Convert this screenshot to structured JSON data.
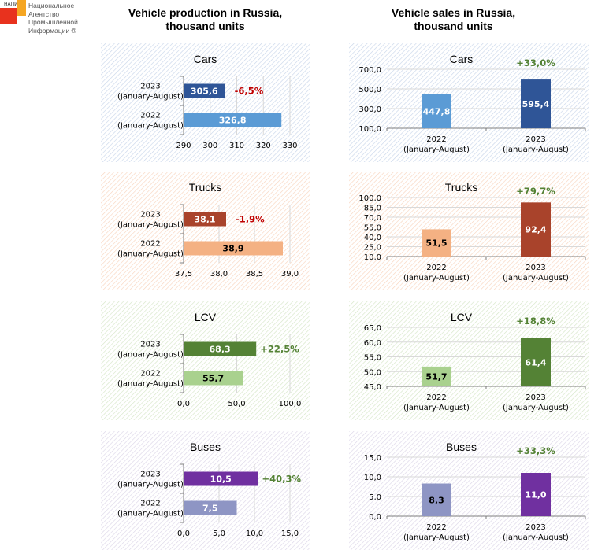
{
  "logo": {
    "abbr": "НАПИ",
    "lines": [
      "Национальное",
      "Агентство",
      "Промышленной",
      "Информации ®"
    ]
  },
  "headers": {
    "production": "Vehicle production in Russia, thousand units",
    "production_line1": "Vehicle production in Russia,",
    "production_line2": "thousand units",
    "sales": "Vehicle sales in Russia, thousand units",
    "sales_line1": "Vehicle sales in Russia,",
    "sales_line2": "thousand units"
  },
  "chart_data": [
    {
      "id": "prod-cars",
      "group": "production",
      "type": "bar",
      "orientation": "horizontal",
      "title": "Cars",
      "categories": [
        [
          "2023",
          "(January-August)"
        ],
        [
          "2022",
          "(January-August)"
        ]
      ],
      "values": [
        305.6,
        326.8
      ],
      "value_labels": [
        "305,6",
        "326,8"
      ],
      "colors": [
        "#2f5597",
        "#5b9bd5"
      ],
      "label_colors": [
        "#ffffff",
        "#ffffff"
      ],
      "change": "-6,5%",
      "change_color": "#c00000",
      "xlim": [
        290,
        330
      ],
      "ticks": [
        290,
        300,
        310,
        320,
        330
      ],
      "tick_labels": [
        "290",
        "300",
        "310",
        "320",
        "330"
      ],
      "grid": true,
      "hatch_color": "#c9d6ea"
    },
    {
      "id": "sales-cars",
      "group": "sales",
      "type": "bar",
      "orientation": "vertical",
      "title": "Cars",
      "categories": [
        [
          "2022",
          "(January-August)"
        ],
        [
          "2023",
          "(January-August)"
        ]
      ],
      "values": [
        447.8,
        595.4
      ],
      "value_labels": [
        "447,8",
        "595,4"
      ],
      "colors": [
        "#5b9bd5",
        "#2f5597"
      ],
      "label_colors": [
        "#ffffff",
        "#ffffff"
      ],
      "change": "+33,0%",
      "change_color": "#548235",
      "ylim": [
        100,
        700
      ],
      "ticks": [
        100,
        300,
        500,
        700
      ],
      "tick_labels": [
        "100,0",
        "300,0",
        "500,0",
        "700,0"
      ],
      "grid": true,
      "hatch_color": "#c9d6ea"
    },
    {
      "id": "prod-trucks",
      "group": "production",
      "type": "bar",
      "orientation": "horizontal",
      "title": "Trucks",
      "categories": [
        [
          "2023",
          "(January-August)"
        ],
        [
          "2022",
          "(January-August)"
        ]
      ],
      "values": [
        38.1,
        38.9
      ],
      "value_labels": [
        "38,1",
        "38,9"
      ],
      "colors": [
        "#a9432b",
        "#f4b183"
      ],
      "label_colors": [
        "#ffffff",
        "#000000"
      ],
      "change": "-1,9%",
      "change_color": "#c00000",
      "xlim": [
        37.5,
        39.0
      ],
      "ticks": [
        37.5,
        38.0,
        38.5,
        39.0
      ],
      "tick_labels": [
        "37,5",
        "38,0",
        "38,5",
        "39,0"
      ],
      "grid": true,
      "hatch_color": "#f8d5bf"
    },
    {
      "id": "sales-trucks",
      "group": "sales",
      "type": "bar",
      "orientation": "vertical",
      "title": "Trucks",
      "categories": [
        [
          "2022",
          "(January-August)"
        ],
        [
          "2023",
          "(January-August)"
        ]
      ],
      "values": [
        51.5,
        92.4
      ],
      "value_labels": [
        "51,5",
        "92,4"
      ],
      "colors": [
        "#f4b183",
        "#a9432b"
      ],
      "label_colors": [
        "#000000",
        "#ffffff"
      ],
      "change": "+79,7%",
      "change_color": "#548235",
      "ylim": [
        10,
        100
      ],
      "ticks": [
        10,
        25,
        40,
        55,
        70,
        85,
        100
      ],
      "tick_labels": [
        "10,0",
        "25,0",
        "40,0",
        "55,0",
        "70,0",
        "85,0",
        "100,0"
      ],
      "grid": true,
      "hatch_color": "#f8d5bf"
    },
    {
      "id": "prod-lcv",
      "group": "production",
      "type": "bar",
      "orientation": "horizontal",
      "title": "LCV",
      "categories": [
        [
          "2023",
          "(January-August)"
        ],
        [
          "2022",
          "(January-August)"
        ]
      ],
      "values": [
        68.3,
        55.7
      ],
      "value_labels": [
        "68,3",
        "55,7"
      ],
      "colors": [
        "#548235",
        "#a9d18e"
      ],
      "label_colors": [
        "#ffffff",
        "#000000"
      ],
      "change": "+22,5%",
      "change_color": "#548235",
      "xlim": [
        0,
        100
      ],
      "ticks": [
        0,
        50,
        100
      ],
      "tick_labels": [
        "0,0",
        "50,0",
        "100,0"
      ],
      "grid": true,
      "hatch_color": "#d6e6c8"
    },
    {
      "id": "sales-lcv",
      "group": "sales",
      "type": "bar",
      "orientation": "vertical",
      "title": "LCV",
      "categories": [
        [
          "2022",
          "(January-August)"
        ],
        [
          "2023",
          "(January-August)"
        ]
      ],
      "values": [
        51.7,
        61.4
      ],
      "value_labels": [
        "51,7",
        "61,4"
      ],
      "colors": [
        "#a9d18e",
        "#548235"
      ],
      "label_colors": [
        "#000000",
        "#ffffff"
      ],
      "change": "+18,8%",
      "change_color": "#548235",
      "ylim": [
        45,
        65
      ],
      "ticks": [
        45,
        50,
        55,
        60,
        65
      ],
      "tick_labels": [
        "45,0",
        "50,0",
        "55,0",
        "60,0",
        "65,0"
      ],
      "grid": true,
      "hatch_color": "#d6e6c8"
    },
    {
      "id": "prod-buses",
      "group": "production",
      "type": "bar",
      "orientation": "horizontal",
      "title": "Buses",
      "categories": [
        [
          "2023",
          "(January-August)"
        ],
        [
          "2022",
          "(January-August)"
        ]
      ],
      "values": [
        10.5,
        7.5
      ],
      "value_labels": [
        "10,5",
        "7,5"
      ],
      "colors": [
        "#7030a0",
        "#8e95c4"
      ],
      "label_colors": [
        "#ffffff",
        "#ffffff"
      ],
      "change": "+40,3%",
      "change_color": "#548235",
      "xlim": [
        0,
        15
      ],
      "ticks": [
        0,
        5,
        10,
        15
      ],
      "tick_labels": [
        "0,0",
        "5,0",
        "10,0",
        "15,0"
      ],
      "grid": true,
      "hatch_color": "#dcd6e8"
    },
    {
      "id": "sales-buses",
      "group": "sales",
      "type": "bar",
      "orientation": "vertical",
      "title": "Buses",
      "categories": [
        [
          "2022",
          "(January-August)"
        ],
        [
          "2023",
          "(January-August)"
        ]
      ],
      "values": [
        8.3,
        11.0
      ],
      "value_labels": [
        "8,3",
        "11,0"
      ],
      "colors": [
        "#8e95c4",
        "#7030a0"
      ],
      "label_colors": [
        "#000000",
        "#ffffff"
      ],
      "change": "+33,3%",
      "change_color": "#548235",
      "ylim": [
        0,
        15
      ],
      "ticks": [
        0,
        5,
        10,
        15
      ],
      "tick_labels": [
        "0,0",
        "5,0",
        "10,0",
        "15,0"
      ],
      "grid": true,
      "hatch_color": "#dcd6e8"
    }
  ]
}
